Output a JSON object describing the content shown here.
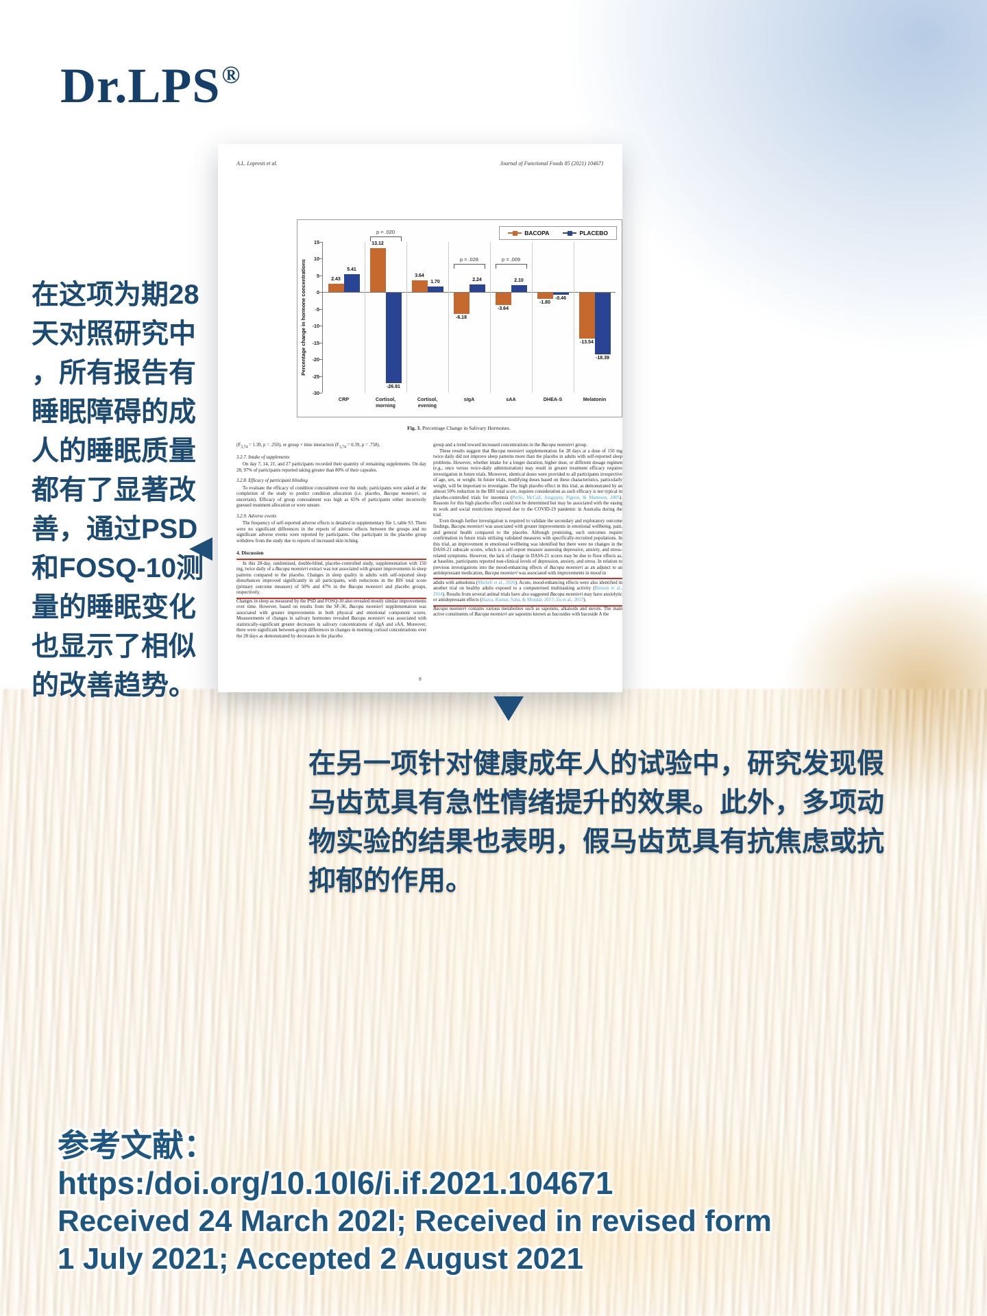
{
  "brand": {
    "logo": "Dr.LPS",
    "registered": "®"
  },
  "colors": {
    "navy_text": "#1c4a70",
    "logo_navy": "#153f68",
    "bacopa_orange": "#c5692e",
    "placebo_blue": "#2a4494",
    "highlight_red": "#d63020",
    "citation_blue": "#4ba0c9"
  },
  "paper": {
    "header_left": "A.L. Lopresti et al.",
    "header_right": "Journal of Functional Foods 85 (2021) 104671",
    "figure_caption_label": "Fig. 3.",
    "figure_caption": "Percentage Change in Salivary Hormones.",
    "page_number": "8",
    "italic_terms": [
      "Bacopa monnieri"
    ],
    "subscript_terms": [
      "F3,74"
    ],
    "citations": [
      "Perlis, McCall, Jungquist, Pigeon, & Matteson, 2005",
      "Micheli et al., 2020",
      "Benson et al., 2014",
      "Hazra, Kumar, Saha, & Mondal, 2017; Zu et al., 2017"
    ],
    "left_column": [
      {
        "kind": "para",
        "noind": true,
        "text": "(F3,74 = 1.39, p = .250), or group × time interaction (F3,74 = 0.39, p = .758)."
      },
      {
        "kind": "head",
        "text": "3.2.7. Intake of supplements"
      },
      {
        "kind": "para",
        "text": "On day 7, 14, 21, and 27 participants recorded their quantity of remaining supplements. On day 28, 97% of participants reported taking greater than 80% of their capsules."
      },
      {
        "kind": "head",
        "text": "3.2.8. Efficacy of participant blinding"
      },
      {
        "kind": "para",
        "text": "To evaluate the efficacy of condition concealment over the study, participants were asked at the completion of the study to predict condition allocation (i.e. placebo, Bacopa monnieri, or uncertain). Efficacy of group concealment was high as 65% of participants either incorrectly guessed treatment allocation or were unsure."
      },
      {
        "kind": "head",
        "text": "3.2.9. Adverse events"
      },
      {
        "kind": "para",
        "text": "The frequency of self-reported adverse effects is detailed in supplementary file 1, table S3. There were no significant differences in the reports of adverse effects between the groups and no significant adverse events were reported by participants. One participant in the placebo group withdrew from the study due to reports of increased skin itching."
      },
      {
        "kind": "headb",
        "text": "4. Discussion"
      },
      {
        "kind": "para",
        "boxed": true,
        "text": "In this 28-day, randomised, double-blind, placebo-controlled study, supplementation with 150 mg, twice daily of a Bacopa monnieri extract was not associated with greater improvements in sleep patterns compared to the placebo. Changes in sleep quality in adults with self-reported sleep disturbances improved significantly in all participants, with reductions in the BIS total score (primary outcome measure) of 50% and 47% in the Bacopa monnieri and placebo groups, respectively."
      },
      {
        "kind": "para",
        "noind": true,
        "text": "Changes in sleep as measured by the PSD and FOSQ-10 also revealed mostly similar improvements over time. However, based on results from the SF-36, Bacopa monnieri supplementation was associated with greater improvements in both physical and emotional component scores. Measurements of changes in salivary hormones revealed Bacopa monnieri was associated with statistically-significant greater decreases in salivary concentrations of sIgA and sAA. Moreover, there were significant between-group differences in changes in morning cortisol concentrations over the 28 days as demonstrated by decreases in the placebo"
      }
    ],
    "right_column": [
      {
        "kind": "para",
        "noind": true,
        "text": "group and a trend toward increased concentrations in the Bacopa monnieri group."
      },
      {
        "kind": "para",
        "text": "These results suggest that Bacopa monnieri supplementation for 28 days at a dose of 150 mg twice daily did not improve sleep patterns more than the placebo in adults with self-reported sleep problems. However, whether intake for a longer duration, higher dose, or different dosage regimen (e.g., once versus twice-daily administration) may result in greater treatment efficacy requires investigation in future trials. Moreover, identical doses were provided to all participants irrespective of age, sex, or weight. In future trials, modifying doses based on these characteristics, particularly weight, will be important to investigate. The high placebo effect in this trial, as demonstrated by an almost 50% reduction in the BIS total score, requires consideration as such efficacy is not typical in placebo-controlled trials for insomnia (Perlis, McCall, Jungquist, Pigeon, & Matteson, 2005). Reasons for this high placebo effect could not be determined but may be associated with the easing in work and social restrictions imposed due to the COVID-19 pandemic in Australia during the trial."
      },
      {
        "kind": "para",
        "text": "Even though further investigation is required to validate the secondary and exploratory outcome findings, Bacopa monnieri was associated with greater improvements in emotional wellbeing, pain, and general health compared to the placebo. Although promising, such outcomes require confirmation in future trials utilising validated measures with specifically-recruited populations. In this trial, an improvement in emotional wellbeing was identified but there were no changes in the DASS-21 subscale scores, which is a self-report measure assessing depressive, anxiety, and stress-related symptoms. However, the lack of change in DASS-21 scores may be due to floor effects as, at baseline, participants reported non-clinical levels of depression, anxiety, and stress. In relation to previous investigations into the mood-enhancing effects of Bacopa monnieri as an adjunct to an antidepressant medication, Bacopa monnieri was associated with improvements in mood in"
      },
      {
        "kind": "para",
        "boxed": true,
        "noind": true,
        "text": "adults with anhedonia (Micheli et al., 2020). Acute, mood-enhancing effects were also identified in another trial on healthy adults exposed to a computerised multitasking activity (Benson et al., 2014). Results from several animal trials have also suggested Bacopa monnieri may have anxiolytic or antidepressant effects (Hazra, Kumar, Saha, & Mondal, 2017; Zu et al., 2017)."
      },
      {
        "kind": "para",
        "noind": true,
        "text": "Bacopa monnieri contains various metabolites such as saponins, alkaloids and sterols. The main active constituents of Bacopa monnieri are saponins known as bacosides with bacoside A the"
      }
    ]
  },
  "chart_data": {
    "type": "bar",
    "title": "",
    "xlabel": "",
    "ylabel": "Percentage change in hormone concentrations",
    "ylim": [
      -30,
      15
    ],
    "ytick_step": 5,
    "grid": "vertical-separators",
    "legend_position": "top-right",
    "categories": [
      "CRP",
      "Cortisol,\nmorning",
      "Cortisol,\nevening",
      "sIgA",
      "sAA",
      "DHEA-S",
      "Melatonin"
    ],
    "series": [
      {
        "name": "BACOPA",
        "color": "#c5692e",
        "values": [
          2.43,
          13.12,
          3.64,
          -6.18,
          -3.64,
          -1.8,
          -13.54
        ],
        "labels": [
          "2.43",
          "13.12",
          "3.64",
          "-6.18",
          "-3.64",
          "-1.80",
          "-13.54"
        ]
      },
      {
        "name": "PLACEBO",
        "color": "#2a4494",
        "values": [
          5.41,
          -26.91,
          1.7,
          2.24,
          2.1,
          -0.46,
          -18.39
        ],
        "labels": [
          "5.41",
          "-26.91",
          "1.70",
          "2.24",
          "2.10",
          "-0.46",
          "-18.39"
        ]
      }
    ],
    "p_annotations": [
      {
        "category_index": 1,
        "label": "p = .020",
        "level": 16.6
      },
      {
        "category_index": 3,
        "label": "p = .028",
        "level": 8.4
      },
      {
        "category_index": 4,
        "label": "p = .009",
        "level": 8.4
      }
    ]
  },
  "left_callout": {
    "lines": [
      "在这项为期28",
      "天对照研究中",
      "，所有报告有",
      "睡眠障碍的成",
      "人的睡眠质量",
      "都有了显著改",
      "善，通过PSD",
      "和FOSQ-10测",
      "量的睡眠变化",
      "也显示了相似",
      "的改善趋势。"
    ]
  },
  "bottom_callout": {
    "lines": [
      "在另一项针对健康成年人的试验中，研究发现假",
      "马齿苋具有急性情绪提升的效果。此外，多项动",
      "物实验的结果也表明，假马齿苋具有抗焦虑或抗",
      "抑郁的作用。"
    ]
  },
  "reference": {
    "label": "参考文献：",
    "doi": "https:/doi.org/10.10l6/i.if.2021.104671",
    "line3": "Received 24 March 202l; Received in revised form",
    "line4": "1 July 2021; Accepted 2 August 2021"
  }
}
